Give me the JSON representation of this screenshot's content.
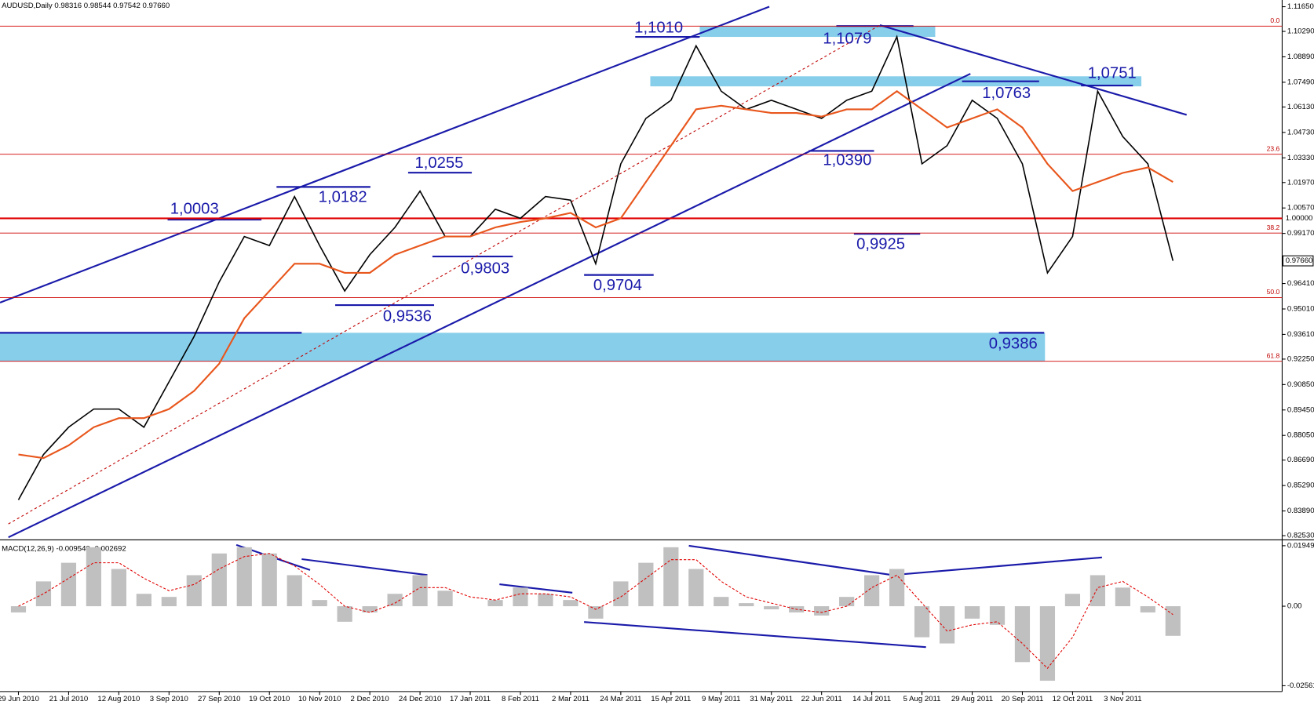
{
  "header": "AUDUSD,Daily  0.98316 0.98544 0.97542 0.97660",
  "chart_data": [
    {
      "type": "line",
      "categories": [
        "29 Jun 2010",
        null,
        "21 Jul 2010",
        null,
        "12 Aug 2010",
        null,
        "3 Sep 2010",
        null,
        "27 Sep 2010",
        null,
        "19 Oct 2010",
        null,
        "10 Nov 2010",
        null,
        "2 Dec 2010",
        null,
        "24 Dec 2010",
        null,
        "17 Jan 2011",
        null,
        "8 Feb 2011",
        null,
        "2 Mar 2011",
        null,
        "24 Mar 2011",
        null,
        "15 Apr 2011",
        null,
        "9 May 2011",
        null,
        "31 May 2011",
        null,
        "22 Jun 2011",
        null,
        "14 Jul 2011",
        null,
        "5 Aug 2011",
        null,
        "29 Aug 2011",
        null,
        "20 Sep 2011",
        null,
        "12 Oct 2011",
        null,
        "3 Nov 2011",
        null,
        null
      ],
      "series": [
        {
          "color": "#000000",
          "values": [
            0.845,
            0.87,
            0.885,
            0.895,
            0.895,
            0.885,
            0.91,
            0.935,
            0.965,
            0.99,
            0.985,
            1.012,
            0.985,
            0.96,
            0.98,
            0.995,
            1.015,
            0.99,
            0.99,
            1.005,
            1.0,
            1.012,
            1.01,
            0.975,
            1.03,
            1.055,
            1.065,
            1.095,
            1.07,
            1.06,
            1.065,
            1.06,
            1.055,
            1.065,
            1.07,
            1.1,
            1.03,
            1.04,
            1.065,
            1.055,
            1.03,
            0.97,
            0.99,
            1.07,
            1.045,
            1.03,
            0.9766
          ]
        },
        {
          "color": "#e8561c",
          "values": [
            0.87,
            0.868,
            0.875,
            0.885,
            0.89,
            0.89,
            0.895,
            0.905,
            0.92,
            0.945,
            0.96,
            0.975,
            0.975,
            0.97,
            0.97,
            0.98,
            0.985,
            0.99,
            0.99,
            0.995,
            0.998,
            1.0,
            1.003,
            0.995,
            1.0,
            1.02,
            1.04,
            1.06,
            1.062,
            1.06,
            1.058,
            1.058,
            1.056,
            1.06,
            1.06,
            1.07,
            1.06,
            1.05,
            1.055,
            1.06,
            1.05,
            1.03,
            1.015,
            1.02,
            1.025,
            1.028,
            1.02
          ]
        }
      ],
      "ylim": [
        0.8253,
        1.1165
      ],
      "yticks": [
        {
          "value": 1.1165,
          "label": "1.11650"
        },
        {
          "value": 1.1029,
          "label": "1.10290"
        },
        {
          "value": 1.0889,
          "label": "1.08890"
        },
        {
          "value": 1.0749,
          "label": "1.07490"
        },
        {
          "value": 1.0613,
          "label": "1.06130"
        },
        {
          "value": 1.0473,
          "label": "1.04730"
        },
        {
          "value": 1.0333,
          "label": "1.03330"
        },
        {
          "value": 1.0197,
          "label": "1.01970"
        },
        {
          "value": 1.0057,
          "label": "1.00570"
        },
        {
          "value": 0.9917,
          "label": "0.99170"
        },
        {
          "value": 0.9641,
          "label": "0.96410"
        },
        {
          "value": 0.9501,
          "label": "0.95010"
        },
        {
          "value": 0.9361,
          "label": "0.93610"
        },
        {
          "value": 0.9225,
          "label": "0.92250"
        },
        {
          "value": 0.9085,
          "label": "0.90850"
        },
        {
          "value": 0.8945,
          "label": "0.89450"
        },
        {
          "value": 0.8805,
          "label": "0.88050"
        },
        {
          "value": 0.8669,
          "label": "0.86690"
        },
        {
          "value": 0.8529,
          "label": "0.85290"
        },
        {
          "value": 0.8389,
          "label": "0.83890"
        },
        {
          "value": 0.8253,
          "label": "0.82530"
        }
      ],
      "level": {
        "value": 1.0,
        "label": "1.00000"
      },
      "last_price": {
        "value": 0.9766,
        "label": "0.97660"
      },
      "fib_levels": [
        {
          "value": 1.1058,
          "label": "0.0"
        },
        {
          "value": 1.0353,
          "label": "23.6"
        },
        {
          "value": 0.9919,
          "label": "38.2"
        },
        {
          "value": 0.9564,
          "label": "50.0"
        },
        {
          "value": 0.9213,
          "label": "61.8"
        }
      ],
      "annotations": [
        "1,1010",
        "1,1079",
        "1,0003",
        "1,0182",
        "1,0255",
        "0,9803",
        "0,9536",
        "0,9704",
        "1,0390",
        "0,9925",
        "1,0763",
        "1,0751",
        "0,9386"
      ]
    },
    {
      "type": "bar",
      "title": "MACD(12,26,9) -0.009540 -0.002692",
      "series": [
        {
          "type": "bar",
          "color": "#c0c0c0",
          "values": [
            -0.002,
            0.008,
            0.014,
            0.019,
            0.012,
            0.004,
            0.003,
            0.01,
            0.017,
            0.019,
            0.017,
            0.01,
            0.002,
            -0.005,
            -0.002,
            0.004,
            0.01,
            0.005,
            0.0,
            0.002,
            0.006,
            0.004,
            0.002,
            -0.004,
            0.008,
            0.014,
            0.019,
            0.012,
            0.003,
            0.001,
            -0.001,
            -0.002,
            -0.003,
            0.003,
            0.01,
            0.012,
            -0.01,
            -0.012,
            -0.004,
            -0.006,
            -0.018,
            -0.024,
            0.004,
            0.01,
            0.006,
            -0.002,
            -0.00954
          ]
        },
        {
          "type": "line",
          "color": "#e00000",
          "values": [
            0.0,
            0.004,
            0.009,
            0.014,
            0.014,
            0.009,
            0.005,
            0.007,
            0.012,
            0.016,
            0.017,
            0.013,
            0.007,
            0.0,
            -0.002,
            0.001,
            0.006,
            0.006,
            0.003,
            0.002,
            0.004,
            0.004,
            0.003,
            -0.001,
            0.003,
            0.009,
            0.015,
            0.015,
            0.008,
            0.003,
            0.001,
            -0.001,
            -0.002,
            0.0,
            0.006,
            0.01,
            0.001,
            -0.008,
            -0.006,
            -0.005,
            -0.012,
            -0.02,
            -0.01,
            0.006,
            0.008,
            0.003,
            -0.002692
          ]
        }
      ],
      "ylim": [
        -0.02561,
        0.019491
      ],
      "yticks": [
        {
          "value": 0.019491,
          "label": "0.019491"
        },
        {
          "value": 0,
          "label": "0.00"
        },
        {
          "value": -0.02561,
          "label": "-0.02561"
        }
      ]
    }
  ]
}
